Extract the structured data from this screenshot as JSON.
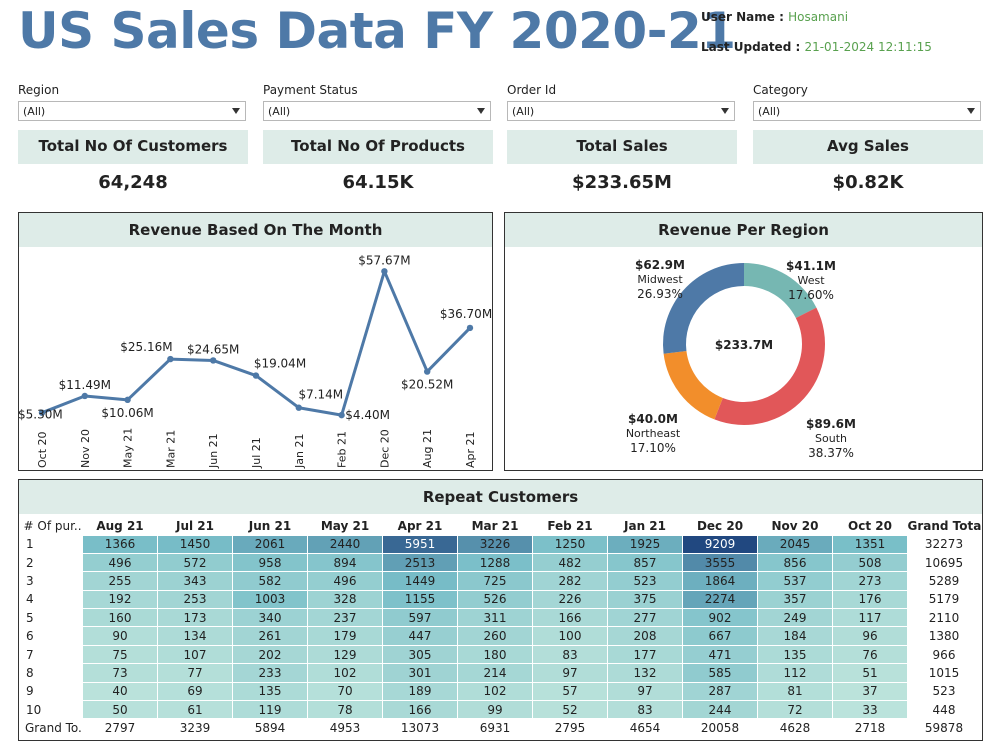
{
  "title": "US Sales Data FY 2020-21",
  "user": {
    "label": "User Name :",
    "value": "Hosamani"
  },
  "updated": {
    "label": "Last Updated :",
    "value": "21-01-2024 12:11:15"
  },
  "filters": [
    {
      "label": "Region",
      "value": "(All)"
    },
    {
      "label": "Payment Status",
      "value": "(All)"
    },
    {
      "label": "Order Id",
      "value": "(All)"
    },
    {
      "label": "Category",
      "value": "(All)"
    }
  ],
  "kpis": [
    {
      "label": "Total No Of Customers",
      "value": "64,248"
    },
    {
      "label": "Total No Of Products",
      "value": "64.15K"
    },
    {
      "label": "Total Sales",
      "value": "$233.65M"
    },
    {
      "label": "Avg Sales",
      "value": "$0.82K"
    }
  ],
  "revenue_month": {
    "title": "Revenue Based On The Month"
  },
  "revenue_region": {
    "title": "Revenue Per Region"
  },
  "chart_data": [
    {
      "type": "line",
      "title": "Revenue Based On The Month",
      "categories": [
        "Oct 20",
        "Nov 20",
        "May 21",
        "Mar 21",
        "Jun 21",
        "Jul 21",
        "Jan 21",
        "Feb 21",
        "Dec 20",
        "Aug 21",
        "Apr 21"
      ],
      "values": [
        5.3,
        11.49,
        10.06,
        25.16,
        24.65,
        19.04,
        7.14,
        4.4,
        57.67,
        20.52,
        36.7
      ],
      "labels": [
        "$5.30M",
        "$11.49M",
        "$10.06M",
        "$25.16M",
        "$24.65M",
        "$19.04M",
        "$7.14M",
        "$4.40M",
        "$57.67M",
        "$20.52M",
        "$36.70M"
      ],
      "unit": "$M",
      "ylim": [
        0,
        60
      ],
      "color": "#4e79a7"
    },
    {
      "type": "pie",
      "title": "Revenue Per Region",
      "center_label": "$233.7M",
      "slices": [
        {
          "name": "West",
          "value": 41.1,
          "value_label": "$41.1M",
          "percent": "17.60%",
          "color": "#76b7b2"
        },
        {
          "name": "South",
          "value": 89.6,
          "value_label": "$89.6M",
          "percent": "38.37%",
          "color": "#e15759"
        },
        {
          "name": "Northeast",
          "value": 40.0,
          "value_label": "$40.0M",
          "percent": "17.10%",
          "color": "#f28e2b"
        },
        {
          "name": "Midwest",
          "value": 62.9,
          "value_label": "$62.9M",
          "percent": "26.93%",
          "color": "#4e79a7"
        }
      ]
    },
    {
      "type": "heatmap",
      "title": "Repeat Customers",
      "row_header": "# Of pur..",
      "columns": [
        "Aug 21",
        "Jul 21",
        "Jun 21",
        "May 21",
        "Apr 21",
        "Mar 21",
        "Feb 21",
        "Jan 21",
        "Dec 20",
        "Nov 20",
        "Oct 20"
      ],
      "grand_total_label": "Grand Total",
      "rows": [
        {
          "label": "1",
          "values": [
            1366,
            1450,
            2061,
            2440,
            5951,
            3226,
            1250,
            1925,
            9209,
            2045,
            1351
          ],
          "total": 32273
        },
        {
          "label": "2",
          "values": [
            496,
            572,
            958,
            894,
            2513,
            1288,
            482,
            857,
            3555,
            856,
            508
          ],
          "total": 10695
        },
        {
          "label": "3",
          "values": [
            255,
            343,
            582,
            496,
            1449,
            725,
            282,
            523,
            1864,
            537,
            273
          ],
          "total": 5289
        },
        {
          "label": "4",
          "values": [
            192,
            253,
            1003,
            328,
            1155,
            526,
            226,
            375,
            2274,
            357,
            176
          ],
          "total": 5179
        },
        {
          "label": "5",
          "values": [
            160,
            173,
            340,
            237,
            597,
            311,
            166,
            277,
            902,
            249,
            117
          ],
          "total": 2110
        },
        {
          "label": "6",
          "values": [
            90,
            134,
            261,
            179,
            447,
            260,
            100,
            208,
            667,
            184,
            96
          ],
          "total": 1380
        },
        {
          "label": "7",
          "values": [
            75,
            107,
            202,
            129,
            305,
            180,
            83,
            177,
            471,
            135,
            76
          ],
          "total": 966
        },
        {
          "label": "8",
          "values": [
            73,
            77,
            233,
            102,
            301,
            214,
            97,
            132,
            585,
            112,
            51
          ],
          "total": 1015
        },
        {
          "label": "9",
          "values": [
            40,
            69,
            135,
            70,
            189,
            102,
            57,
            97,
            287,
            81,
            37
          ],
          "total": 523
        },
        {
          "label": "10",
          "values": [
            50,
            61,
            119,
            78,
            166,
            99,
            52,
            83,
            244,
            72,
            33
          ],
          "total": 448
        }
      ],
      "grand_total_row": {
        "label": "Grand To..",
        "values": [
          2797,
          3239,
          5894,
          4953,
          13073,
          6931,
          2795,
          4654,
          20058,
          4628,
          2718
        ],
        "total": 59878
      }
    }
  ]
}
